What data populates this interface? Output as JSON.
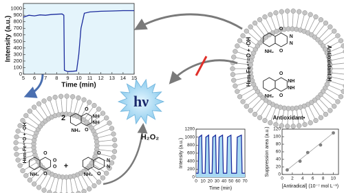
{
  "chart_data": [
    {
      "type": "line",
      "xlabel": "Time (min)",
      "ylabel": "Intensity (a.u.)",
      "x": [
        5,
        5.5,
        6,
        6.5,
        7,
        7.5,
        8,
        8.5,
        8.65,
        8.7,
        9,
        9.5,
        9.8,
        10,
        10.2,
        10.5,
        11,
        12,
        13,
        14,
        15
      ],
      "values": [
        870,
        900,
        890,
        905,
        900,
        910,
        915,
        920,
        900,
        60,
        40,
        45,
        50,
        300,
        700,
        930,
        950,
        960,
        965,
        970,
        970
      ],
      "color": "#1a2a9c",
      "xlim": [
        5,
        15
      ],
      "xticks": [
        5,
        6,
        7,
        8,
        9,
        10,
        11,
        12,
        13,
        14,
        15
      ],
      "ylim": [
        0,
        1080
      ],
      "yticks": [
        0,
        100,
        200,
        300,
        400,
        500,
        600,
        700,
        800,
        900,
        1000
      ]
    },
    {
      "type": "line",
      "xlabel": "Time (min)",
      "ylabel": "Intensity (a.u.)",
      "x": [
        0,
        3,
        4,
        8,
        9,
        13,
        14,
        18,
        19,
        23,
        24,
        28,
        29,
        32,
        33,
        38,
        39,
        44,
        45,
        50,
        51,
        58,
        59,
        65,
        66,
        70
      ],
      "values": [
        100,
        100,
        1000,
        1050,
        100,
        100,
        1000,
        1050,
        100,
        100,
        1000,
        1050,
        100,
        100,
        1000,
        1050,
        100,
        100,
        1000,
        1050,
        100,
        100,
        1000,
        1050,
        100,
        100
      ],
      "color": "#1a2a9c",
      "xlim": [
        0,
        70
      ],
      "xticks": [
        0,
        10,
        20,
        30,
        40,
        50,
        60,
        70
      ],
      "ylim": [
        0,
        1200
      ],
      "yticks": [
        0,
        200,
        400,
        600,
        800,
        1000,
        1200
      ]
    },
    {
      "type": "scatter",
      "xlabel": "[Antiradical] (10⁻⁷ mol L⁻¹)",
      "ylabel": "Suppression area (a.u.)",
      "x": [
        1,
        3.5,
        5,
        7.5,
        10
      ],
      "values": [
        12,
        35,
        58,
        78,
        110
      ],
      "color": "#7f7f7f",
      "xlim": [
        0,
        11
      ],
      "xticks": [
        0,
        2,
        4,
        6,
        8,
        10
      ],
      "ylim": [
        0,
        120
      ],
      "yticks": [
        0,
        20,
        40,
        60,
        80,
        100,
        120
      ]
    }
  ],
  "diagram": {
    "light": "hν",
    "oxidant": "H₂O₂",
    "right_vesicle": {
      "radicals": "Hem-Fe⁴⁺=O + ·OH",
      "antioxidant_h": "Antioxidant-H",
      "antioxidant_radical": "Antioxidant•",
      "molecule_top": [
        "O",
        "N",
        "N",
        "O",
        "NH₂"
      ],
      "molecule_bottom": [
        "O",
        "NH",
        "NH",
        "O",
        "NH₂"
      ]
    },
    "left_vesicle": {
      "radicals": "Hem-Fe⁴⁺O + ·OH",
      "coefficient": "2",
      "plus": "+",
      "molecule_top": [
        "O",
        "NH",
        "NH",
        "O",
        "NH₂"
      ],
      "molecule_left": [
        "O",
        "O",
        "O",
        "O",
        "NH₂"
      ],
      "molecule_right": [
        "O",
        "N",
        "N",
        "O",
        "NH₂"
      ]
    }
  }
}
